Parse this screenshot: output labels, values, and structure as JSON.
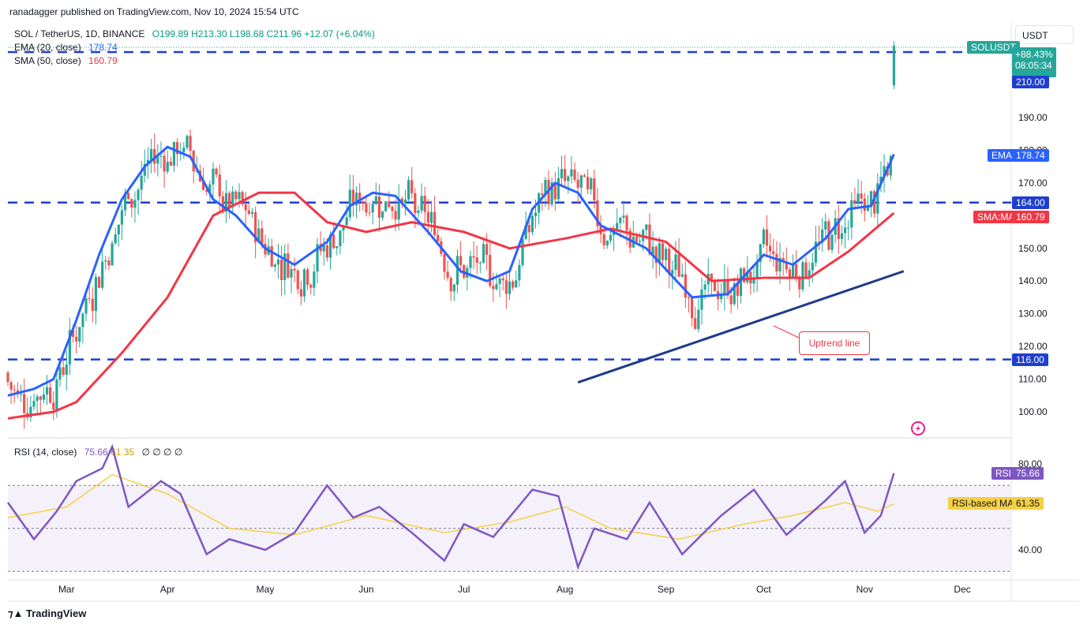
{
  "header": {
    "published": "ranadagger published on TradingView.com, Nov 10, 2024 15:54 UTC"
  },
  "symbol": {
    "title": "SOL / TetherUS, 1D, BINANCE",
    "open": "O199.89",
    "high": "H213.30",
    "low": "L198.68",
    "close": "C211.96",
    "change": "+12.07 (+6.04%)"
  },
  "indicators": {
    "ema_label": "EMA (20, close)",
    "ema_value": "178.74",
    "sma_label": "SMA (50, close)",
    "sma_value": "160.79",
    "rsi_label": "RSI (14, close)",
    "rsi_value": "75.66",
    "rsi_ma_value": "61.35",
    "rsi_extra": "∅ ∅ ∅ ∅"
  },
  "price_axis": {
    "currency": "USDT",
    "ticks": [
      "100.00",
      "110.00",
      "120.00",
      "130.00",
      "140.00",
      "150.00",
      "160.00",
      "170.00",
      "180.00",
      "190.00",
      "200.00",
      "210.00"
    ],
    "symbol_tag": "SOLUSDT",
    "pct_tag": "+88.43%",
    "countdown_tag": "08:05:34",
    "level_210": "210.00",
    "ema_tag": "EMA",
    "ema_tag_value": "178.74",
    "level_164": "164.00",
    "sma_tag": "SMA:MA",
    "sma_tag_value": "160.79",
    "level_116": "116.00"
  },
  "rsi_axis": {
    "ticks": [
      "80.00",
      "40.00"
    ],
    "rsi_tag": "RSI",
    "rsi_tag_value": "75.66",
    "ma_tag": "RSI-based MA",
    "ma_tag_value": "61.35"
  },
  "time_axis": [
    "Mar",
    "Apr",
    "May",
    "Jun",
    "Jul",
    "Aug",
    "Sep",
    "Oct",
    "Nov",
    "Dec"
  ],
  "annotation": "Uptrend line",
  "footer": "TradingView",
  "colors": {
    "up": "#26a69a",
    "down": "#ef5350",
    "ema": "#2962ff",
    "sma": "#f23645",
    "level": "#1e3ecf",
    "trend": "#1e3a8a",
    "rsi": "#7e57c2",
    "rsi_ma": "#f5d046"
  },
  "chart_data": [
    {
      "type": "candlestick",
      "title": "SOL / TetherUS, 1D, BINANCE",
      "ylabel": "USDT",
      "ylim": [
        96,
        224
      ],
      "x_range": [
        "2024-02-12",
        "2024-12-16"
      ],
      "horizontal_levels": [
        116,
        164,
        210
      ],
      "uptrend_line": {
        "from": [
          "2024-08-05",
          109
        ],
        "to": [
          "2024-11-13",
          143
        ]
      },
      "series": [
        {
          "name": "EMA (20, close)",
          "last": 178.74,
          "points": [
            [
              "2024-02-12",
              105
            ],
            [
              "2024-02-20",
              107
            ],
            [
              "2024-02-26",
              110
            ],
            [
              "2024-03-04",
              128
            ],
            [
              "2024-03-11",
              148
            ],
            [
              "2024-03-18",
              165
            ],
            [
              "2024-03-25",
              175
            ],
            [
              "2024-04-01",
              181
            ],
            [
              "2024-04-08",
              178
            ],
            [
              "2024-04-15",
              165
            ],
            [
              "2024-04-22",
              160
            ],
            [
              "2024-05-01",
              150
            ],
            [
              "2024-05-10",
              145
            ],
            [
              "2024-05-20",
              152
            ],
            [
              "2024-05-27",
              163
            ],
            [
              "2024-06-03",
              167
            ],
            [
              "2024-06-10",
              166
            ],
            [
              "2024-06-20",
              155
            ],
            [
              "2024-06-30",
              143
            ],
            [
              "2024-07-08",
              140
            ],
            [
              "2024-07-15",
              143
            ],
            [
              "2024-07-22",
              162
            ],
            [
              "2024-07-29",
              170
            ],
            [
              "2024-08-05",
              167
            ],
            [
              "2024-08-12",
              157
            ],
            [
              "2024-08-26",
              150
            ],
            [
              "2024-09-09",
              135
            ],
            [
              "2024-09-20",
              136
            ],
            [
              "2024-10-01",
              148
            ],
            [
              "2024-10-10",
              145
            ],
            [
              "2024-10-20",
              153
            ],
            [
              "2024-10-27",
              162
            ],
            [
              "2024-11-03",
              163
            ],
            [
              "2024-11-10",
              178.74
            ]
          ]
        },
        {
          "name": "SMA (50, close)",
          "last": 160.79,
          "points": [
            [
              "2024-02-12",
              98
            ],
            [
              "2024-02-26",
              100
            ],
            [
              "2024-03-04",
              103
            ],
            [
              "2024-03-18",
              118
            ],
            [
              "2024-04-01",
              135
            ],
            [
              "2024-04-15",
              160
            ],
            [
              "2024-04-29",
              167
            ],
            [
              "2024-05-10",
              167
            ],
            [
              "2024-05-20",
              158
            ],
            [
              "2024-06-01",
              155
            ],
            [
              "2024-06-15",
              158
            ],
            [
              "2024-07-01",
              155
            ],
            [
              "2024-07-15",
              150
            ],
            [
              "2024-08-01",
              153
            ],
            [
              "2024-08-15",
              156
            ],
            [
              "2024-09-01",
              152
            ],
            [
              "2024-09-15",
              140
            ],
            [
              "2024-10-01",
              141
            ],
            [
              "2024-10-15",
              141
            ],
            [
              "2024-10-27",
              149
            ],
            [
              "2024-11-10",
              160.79
            ]
          ]
        }
      ],
      "last_candle": {
        "open": 199.89,
        "high": 213.3,
        "low": 198.68,
        "close": 211.96
      }
    },
    {
      "type": "line",
      "title": "RSI (14, close)",
      "ylim": [
        22,
        90
      ],
      "bands": [
        30,
        50,
        70
      ],
      "series": [
        {
          "name": "RSI",
          "last": 75.66,
          "points": [
            [
              "2024-02-12",
              62
            ],
            [
              "2024-02-20",
              45
            ],
            [
              "2024-02-27",
              58
            ],
            [
              "2024-03-04",
              72
            ],
            [
              "2024-03-12",
              78
            ],
            [
              "2024-03-15",
              88
            ],
            [
              "2024-03-20",
              60
            ],
            [
              "2024-03-30",
              72
            ],
            [
              "2024-04-05",
              66
            ],
            [
              "2024-04-13",
              38
            ],
            [
              "2024-04-20",
              45
            ],
            [
              "2024-05-01",
              40
            ],
            [
              "2024-05-10",
              48
            ],
            [
              "2024-05-20",
              70
            ],
            [
              "2024-05-28",
              55
            ],
            [
              "2024-06-05",
              60
            ],
            [
              "2024-06-15",
              48
            ],
            [
              "2024-06-25",
              35
            ],
            [
              "2024-07-01",
              52
            ],
            [
              "2024-07-10",
              46
            ],
            [
              "2024-07-22",
              68
            ],
            [
              "2024-07-30",
              65
            ],
            [
              "2024-08-05",
              32
            ],
            [
              "2024-08-10",
              50
            ],
            [
              "2024-08-20",
              45
            ],
            [
              "2024-08-27",
              62
            ],
            [
              "2024-09-06",
              38
            ],
            [
              "2024-09-18",
              56
            ],
            [
              "2024-09-28",
              68
            ],
            [
              "2024-10-08",
              47
            ],
            [
              "2024-10-20",
              63
            ],
            [
              "2024-10-26",
              72
            ],
            [
              "2024-11-01",
              48
            ],
            [
              "2024-11-06",
              56
            ],
            [
              "2024-11-10",
              75.66
            ]
          ]
        },
        {
          "name": "RSI-based MA",
          "last": 61.35,
          "points": [
            [
              "2024-02-12",
              55
            ],
            [
              "2024-03-01",
              60
            ],
            [
              "2024-03-15",
              75
            ],
            [
              "2024-04-01",
              66
            ],
            [
              "2024-04-20",
              50
            ],
            [
              "2024-05-10",
              47
            ],
            [
              "2024-06-01",
              56
            ],
            [
              "2024-06-25",
              48
            ],
            [
              "2024-07-15",
              53
            ],
            [
              "2024-08-01",
              60
            ],
            [
              "2024-08-15",
              50
            ],
            [
              "2024-09-05",
              45
            ],
            [
              "2024-09-25",
              52
            ],
            [
              "2024-10-10",
              56
            ],
            [
              "2024-10-26",
              62
            ],
            [
              "2024-11-05",
              58
            ],
            [
              "2024-11-10",
              61.35
            ]
          ]
        }
      ]
    }
  ]
}
